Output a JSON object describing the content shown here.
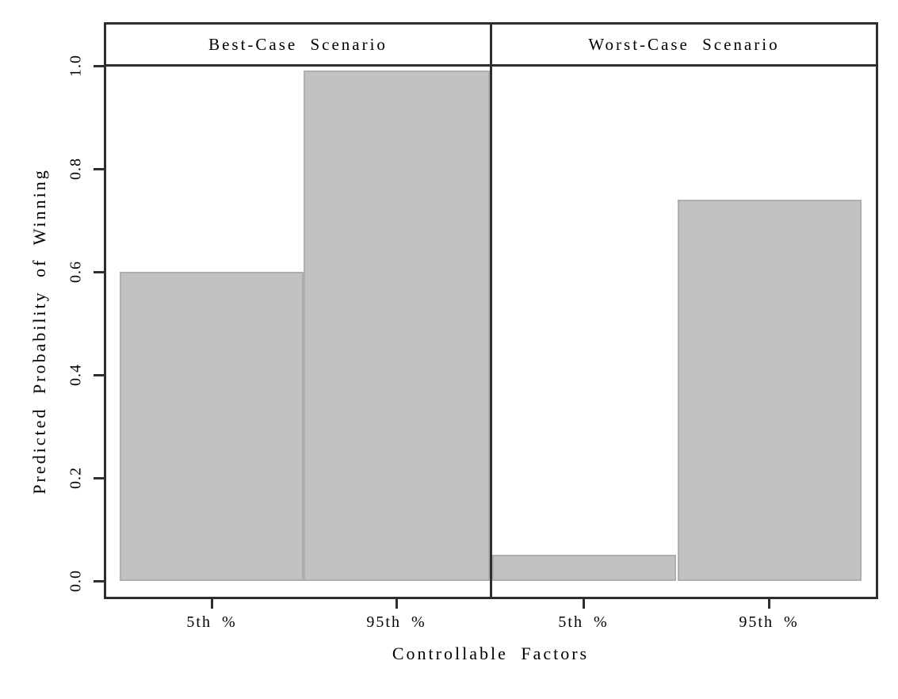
{
  "chart_data": {
    "type": "bar",
    "title": "",
    "xlabel": "Controllable Factors",
    "ylabel": "Predicted Probability of Winning",
    "categories": [
      "5th %",
      "95th %"
    ],
    "panels": [
      {
        "title": "Best-Case Scenario",
        "values": [
          0.6,
          0.99
        ]
      },
      {
        "title": "Worst-Case Scenario",
        "values": [
          0.05,
          0.74
        ]
      }
    ],
    "yticks": [
      "0.0",
      "0.2",
      "0.4",
      "0.6",
      "0.8",
      "1.0"
    ],
    "ylim": [
      0.0,
      1.0
    ],
    "grid": "off",
    "legend": "none",
    "layout": "two-panel trellis, shared y axis, strip headers on top",
    "style": {
      "bar_fill": "#c2c2c2",
      "bar_border": "#aeaeae",
      "line_color": "#2e2e2e",
      "background": "#ffffff"
    }
  }
}
